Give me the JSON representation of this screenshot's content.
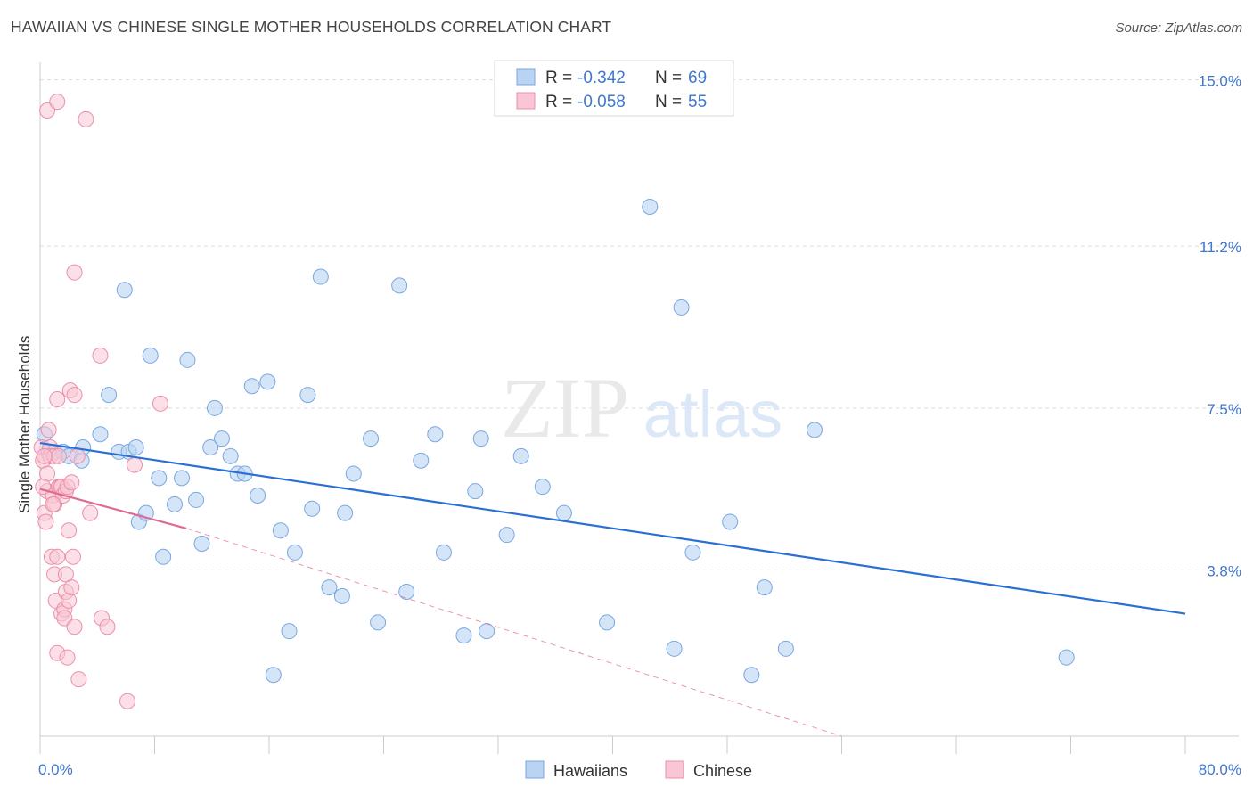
{
  "title": "HAWAIIAN VS CHINESE SINGLE MOTHER HOUSEHOLDS CORRELATION CHART",
  "source": "Source: ZipAtlas.com",
  "watermark": {
    "zip": "ZIP",
    "atlas": "atlas"
  },
  "colors": {
    "hawaiians_fill": "#b9d3f3",
    "hawaiians_stroke": "#7aa7e0",
    "hawaiians_line": "#2a6fd3",
    "chinese_fill": "#f8c6d4",
    "chinese_stroke": "#ec8fab",
    "chinese_line": "#e06a92",
    "tick_label": "#3f77d1",
    "grid": "#dcdcdc"
  },
  "legend_box": {
    "rows": [
      {
        "series": "Hawaiians",
        "r_label": "R =",
        "r_value": "-0.342",
        "n_label": "N =",
        "n_value": "69"
      },
      {
        "series": "Chinese",
        "r_label": "R =",
        "r_value": "-0.058",
        "n_label": "N =",
        "n_value": "55"
      }
    ]
  },
  "chart_data": {
    "type": "scatter",
    "title": "HAWAIIAN VS CHINESE SINGLE MOTHER HOUSEHOLDS CORRELATION CHART",
    "xlabel": "",
    "ylabel": "Single Mother Households",
    "xlim": [
      0,
      80
    ],
    "ylim": [
      0,
      15.4
    ],
    "x_tick_labels": [
      "0.0%",
      "80.0%"
    ],
    "y_ticks": [
      3.8,
      7.5,
      11.2,
      15.0
    ],
    "y_tick_labels": [
      "3.8%",
      "7.5%",
      "11.2%",
      "15.0%"
    ],
    "grid": true,
    "legend_position": "bottom",
    "series": [
      {
        "name": "Hawaiians",
        "trend": {
          "x0": 0,
          "y0": 6.7,
          "x1": 80,
          "y1": 2.8
        },
        "points": [
          [
            0.3,
            6.9
          ],
          [
            0.6,
            6.5
          ],
          [
            1.0,
            6.5
          ],
          [
            1.6,
            6.5
          ],
          [
            2.0,
            6.4
          ],
          [
            2.9,
            6.3
          ],
          [
            3.0,
            6.6
          ],
          [
            4.2,
            6.9
          ],
          [
            4.8,
            7.8
          ],
          [
            5.5,
            6.5
          ],
          [
            6.2,
            6.5
          ],
          [
            6.7,
            6.6
          ],
          [
            5.9,
            10.2
          ],
          [
            6.9,
            4.9
          ],
          [
            7.4,
            5.1
          ],
          [
            7.7,
            8.7
          ],
          [
            8.3,
            5.9
          ],
          [
            8.6,
            4.1
          ],
          [
            9.4,
            5.3
          ],
          [
            9.9,
            5.9
          ],
          [
            10.3,
            8.6
          ],
          [
            10.9,
            5.4
          ],
          [
            11.3,
            4.4
          ],
          [
            11.9,
            6.6
          ],
          [
            12.2,
            7.5
          ],
          [
            12.7,
            6.8
          ],
          [
            13.3,
            6.4
          ],
          [
            13.8,
            6.0
          ],
          [
            14.3,
            6.0
          ],
          [
            14.8,
            8.0
          ],
          [
            15.2,
            5.5
          ],
          [
            15.9,
            8.1
          ],
          [
            16.3,
            1.4
          ],
          [
            16.8,
            4.7
          ],
          [
            17.4,
            2.4
          ],
          [
            17.8,
            4.2
          ],
          [
            18.7,
            7.8
          ],
          [
            19.0,
            5.2
          ],
          [
            19.6,
            10.5
          ],
          [
            20.2,
            3.4
          ],
          [
            21.1,
            3.2
          ],
          [
            21.3,
            5.1
          ],
          [
            21.9,
            6.0
          ],
          [
            23.1,
            6.8
          ],
          [
            23.6,
            2.6
          ],
          [
            25.1,
            10.3
          ],
          [
            25.6,
            3.3
          ],
          [
            26.6,
            6.3
          ],
          [
            27.6,
            6.9
          ],
          [
            28.2,
            4.2
          ],
          [
            29.6,
            2.3
          ],
          [
            30.4,
            5.6
          ],
          [
            30.8,
            6.8
          ],
          [
            31.2,
            2.4
          ],
          [
            32.6,
            4.6
          ],
          [
            33.6,
            6.4
          ],
          [
            35.1,
            5.7
          ],
          [
            36.6,
            5.1
          ],
          [
            39.6,
            2.6
          ],
          [
            42.6,
            12.1
          ],
          [
            44.3,
            2.0
          ],
          [
            44.8,
            9.8
          ],
          [
            45.6,
            4.2
          ],
          [
            48.2,
            4.9
          ],
          [
            49.7,
            1.4
          ],
          [
            50.6,
            3.4
          ],
          [
            52.1,
            2.0
          ],
          [
            54.1,
            7.0
          ],
          [
            71.7,
            1.8
          ]
        ]
      },
      {
        "name": "Chinese",
        "trend": {
          "x0": 0,
          "y0": 5.65,
          "x1": 10.2,
          "y1": 4.75
        },
        "trend_extension": {
          "x0": 10.2,
          "y0": 4.75,
          "x1": 56.0,
          "y1": 0.0
        },
        "points": [
          [
            0.1,
            6.6
          ],
          [
            0.2,
            6.3
          ],
          [
            0.3,
            5.1
          ],
          [
            0.4,
            4.9
          ],
          [
            0.5,
            6.0
          ],
          [
            0.5,
            5.6
          ],
          [
            0.6,
            7.0
          ],
          [
            0.7,
            6.6
          ],
          [
            0.7,
            6.4
          ],
          [
            0.8,
            4.1
          ],
          [
            0.9,
            5.5
          ],
          [
            1.0,
            6.4
          ],
          [
            1.0,
            5.3
          ],
          [
            1.0,
            3.7
          ],
          [
            1.1,
            3.1
          ],
          [
            1.2,
            7.7
          ],
          [
            1.2,
            4.1
          ],
          [
            1.2,
            1.9
          ],
          [
            1.3,
            6.4
          ],
          [
            1.3,
            5.7
          ],
          [
            1.4,
            5.7
          ],
          [
            1.5,
            5.7
          ],
          [
            1.5,
            2.8
          ],
          [
            1.6,
            5.5
          ],
          [
            1.7,
            2.9
          ],
          [
            1.7,
            2.7
          ],
          [
            1.8,
            3.3
          ],
          [
            1.8,
            5.6
          ],
          [
            1.8,
            3.7
          ],
          [
            1.9,
            1.8
          ],
          [
            1.9,
            5.7
          ],
          [
            2.0,
            4.7
          ],
          [
            2.0,
            3.1
          ],
          [
            2.1,
            7.9
          ],
          [
            2.2,
            3.4
          ],
          [
            2.2,
            5.8
          ],
          [
            2.3,
            4.1
          ],
          [
            2.4,
            7.8
          ],
          [
            2.4,
            2.5
          ],
          [
            2.4,
            10.6
          ],
          [
            2.6,
            6.4
          ],
          [
            2.7,
            1.3
          ],
          [
            3.2,
            14.1
          ],
          [
            3.5,
            5.1
          ],
          [
            4.2,
            8.7
          ],
          [
            4.3,
            2.7
          ],
          [
            4.7,
            2.5
          ],
          [
            6.1,
            0.8
          ],
          [
            6.6,
            6.2
          ],
          [
            8.4,
            7.6
          ],
          [
            0.5,
            14.3
          ],
          [
            1.2,
            14.5
          ],
          [
            0.2,
            5.7
          ],
          [
            0.3,
            6.4
          ],
          [
            0.9,
            5.3
          ]
        ]
      }
    ]
  }
}
